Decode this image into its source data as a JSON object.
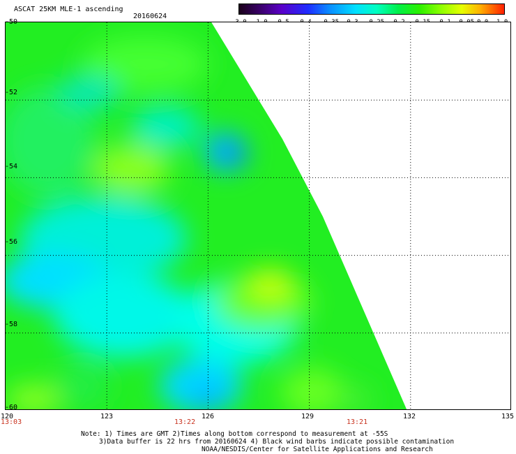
{
  "header": {
    "title": "ASCAT 25KM MLE-1 ascending",
    "date": "20160624"
  },
  "colorbar": {
    "labels": [
      "-3.0",
      "-1.0",
      "-0.5",
      "-0.4",
      "-0.35",
      "-0.3",
      "-0.25",
      "-0.2",
      "-0.15",
      "-0.1",
      "-0.05",
      "0.0",
      "1.0"
    ],
    "colors": [
      "#1a001a",
      "#3a006a",
      "#5a00c8",
      "#1f2cff",
      "#0a8cff",
      "#00e0ff",
      "#00ffc0",
      "#00f04a",
      "#2cf000",
      "#8cff00",
      "#e6ff00",
      "#ffb000",
      "#ff2000"
    ]
  },
  "map": {
    "lon_range": [
      120,
      135
    ],
    "lat_range": [
      -50,
      -60
    ],
    "x_ticks": [
      "120",
      "123",
      "126",
      "129",
      "132",
      "135"
    ],
    "y_ticks": [
      "-50",
      "-52",
      "-54",
      "-56",
      "-58",
      "-60"
    ],
    "times": [
      {
        "label": "13:03",
        "lon": 120
      },
      {
        "label": "13:22",
        "lon": 125.2
      },
      {
        "label": "13:21",
        "lon": 130.2
      }
    ],
    "swath_edge": [
      {
        "lat": -50.0,
        "lon": 126.1
      },
      {
        "lat": -52.0,
        "lon": 127.5
      },
      {
        "lat": -53.0,
        "lon": 128.2
      },
      {
        "lat": -54.0,
        "lon": 128.8
      },
      {
        "lat": -55.0,
        "lon": 129.4
      },
      {
        "lat": -56.0,
        "lon": 129.9
      },
      {
        "lat": -57.0,
        "lon": 130.4
      },
      {
        "lat": -58.0,
        "lon": 130.9
      },
      {
        "lat": -59.0,
        "lon": 131.4
      },
      {
        "lat": -60.0,
        "lon": 131.9
      }
    ]
  },
  "notes": {
    "line1": "Note: 1) Times are GMT 2)Times along bottom correspond to measurement at -55S",
    "line2": "3)Data buffer is 22 hrs from 20160624 4) Black wind barbs indicate possible contamination",
    "line3": "NOAA/NESDIS/Center for Satellite Applications and Research"
  }
}
